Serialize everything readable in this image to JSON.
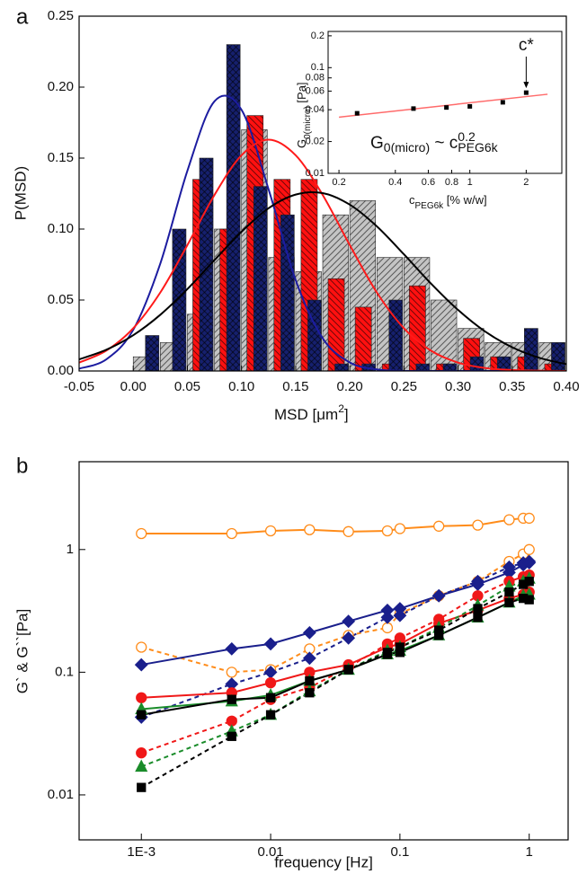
{
  "chart_data": [
    {
      "type": "histogram",
      "panel_label": "a",
      "xlabel_parts": [
        "MSD [μm",
        "2",
        "]"
      ],
      "ylabel": "P(MSD)",
      "bins": [
        0,
        0.025,
        0.05,
        0.075,
        0.1,
        0.125,
        0.15,
        0.175,
        0.2,
        0.225,
        0.25,
        0.275,
        0.3,
        0.325,
        0.35,
        0.375,
        0.4
      ],
      "xlim": [
        -0.05,
        0.4
      ],
      "ylim": [
        0,
        0.25
      ],
      "xticks": [
        -0.05,
        {
          "value": 0,
          "label": "0.00"
        },
        0.05,
        {
          "value": 0.1,
          "label": "0.10"
        },
        0.15,
        {
          "value": 0.2,
          "label": "0.20"
        },
        0.25,
        {
          "value": 0.3,
          "label": "0.30"
        },
        0.35,
        {
          "value": 0.4,
          "label": "0.40"
        }
      ],
      "yticks": [
        {
          "value": 0,
          "label": "0.00"
        },
        0.05,
        {
          "value": 0.1,
          "label": "0.10"
        },
        0.15,
        {
          "value": 0.2,
          "label": "0.20"
        },
        0.25
      ],
      "series": [
        {
          "color": "#c4c4c4",
          "hatch": "diagonal",
          "values": [
            0.01,
            0.02,
            0.04,
            0.1,
            0.17,
            0.08,
            0.07,
            0.11,
            0.12,
            0.08,
            0.08,
            0.05,
            0.03,
            0.02,
            0.02,
            0.02
          ]
        },
        {
          "color": "#ff1010",
          "hatch": "back-diagonal",
          "values": [
            0,
            0,
            0.135,
            0.1,
            0.18,
            0.135,
            0.135,
            0.065,
            0.045,
            0.005,
            0.06,
            0.005,
            0.023,
            0.01,
            0.01,
            0.005
          ]
        },
        {
          "color": "#16206e",
          "hatch": "cross",
          "values": [
            0.025,
            0.1,
            0.15,
            0.23,
            0.13,
            0.11,
            0.05,
            0.005,
            0.005,
            0.05,
            0.005,
            0.005,
            0.01,
            0.01,
            0.03,
            0.02
          ]
        }
      ],
      "fit_x": [
        -0.05,
        -0.025,
        0,
        0.025,
        0.05,
        0.075,
        0.1,
        0.125,
        0.15,
        0.175,
        0.2,
        0.225,
        0.25,
        0.275,
        0.3,
        0.325,
        0.35,
        0.375,
        0.4
      ],
      "fits": [
        {
          "color": "#1c1ca0",
          "values": [
            0.0016,
            0.0081,
            0.029,
            0.0757,
            0.141,
            0.19,
            0.184,
            0.128,
            0.064,
            0.023,
            0.006,
            0.0011,
            0.0001,
            0,
            0,
            0,
            0,
            0,
            0
          ]
        },
        {
          "color": "#ff1a1a",
          "values": [
            0.0059,
            0.0143,
            0.0301,
            0.0553,
            0.0887,
            0.124,
            0.152,
            0.163,
            0.152,
            0.124,
            0.0887,
            0.0553,
            0.0301,
            0.0143,
            0.0059,
            0.0021,
            0.0007,
            0.0002,
            0
          ]
        },
        {
          "color": "#000000",
          "values": [
            0.0082,
            0.0149,
            0.0252,
            0.0396,
            0.0577,
            0.0781,
            0.0981,
            0.1147,
            0.1243,
            0.1253,
            0.1172,
            0.1019,
            0.0822,
            0.0616,
            0.043,
            0.0278,
            0.0167,
            0.0093,
            0.0048
          ]
        }
      ]
    },
    {
      "type": "scatter",
      "log_x": true,
      "log_y": true,
      "xlabel_parts": [
        "c",
        "PEG6k",
        " [% w/w]"
      ],
      "ylabel_parts": [
        "G",
        "0(micro)",
        " [Pa]"
      ],
      "annotation_parts": [
        "G",
        "0(micro)",
        " ~ c",
        "0.2",
        "PEG6k"
      ],
      "point_label": "c*",
      "xlim": [
        0.175,
        3.1
      ],
      "ylim": [
        0.01,
        0.22
      ],
      "xticks": [
        0.2,
        0.4,
        0.6,
        0.8,
        1,
        2
      ],
      "yticks": [
        0.01,
        0.02,
        0.04,
        0.06,
        0.08,
        0.1,
        0.2
      ],
      "x": [
        0.25,
        0.5,
        0.75,
        1.0,
        1.5,
        2.0
      ],
      "values": [
        0.037,
        0.041,
        0.042,
        0.043,
        0.047,
        0.058
      ],
      "color": "#000000",
      "fit": {
        "x": [
          0.2,
          2.6
        ],
        "values": [
          0.034,
          0.056
        ],
        "color": "#ff6a6a"
      }
    },
    {
      "type": "line",
      "panel_label": "b",
      "log_x": true,
      "log_y": true,
      "xlabel": "frequency [Hz]",
      "ylabel": "G` & G``[Pa]",
      "xlim": [
        0.00033,
        2
      ],
      "ylim": [
        0.0043,
        5.2
      ],
      "xticks": [
        {
          "value": 0.001,
          "label": "1E-3"
        },
        0.01,
        0.1,
        1
      ],
      "yticks": [
        0.01,
        0.1,
        1
      ],
      "x": [
        0.001,
        0.005,
        0.01,
        0.02,
        0.04,
        0.08,
        0.1,
        0.2,
        0.4,
        0.7,
        0.9,
        1
      ],
      "series": [
        {
          "color": "#ff8c1a",
          "marker": "circle",
          "filled": false,
          "dashed": false,
          "values": [
            1.35,
            1.35,
            1.42,
            1.45,
            1.4,
            1.42,
            1.48,
            1.55,
            1.58,
            1.75,
            1.8,
            1.8
          ]
        },
        {
          "color": "#ff8c1a",
          "marker": "circle",
          "filled": false,
          "dashed": true,
          "values": [
            0.16,
            0.1,
            0.105,
            0.155,
            0.2,
            0.23,
            0.3,
            0.42,
            0.55,
            0.8,
            0.92,
            1.0
          ]
        },
        {
          "color": "#1a1f8c",
          "marker": "diamond",
          "filled": true,
          "dashed": false,
          "values": [
            0.115,
            0.155,
            0.17,
            0.21,
            0.26,
            0.32,
            0.33,
            0.42,
            0.52,
            0.65,
            0.75,
            0.8
          ]
        },
        {
          "color": "#1a1f8c",
          "marker": "diamond",
          "filled": true,
          "dashed": true,
          "values": [
            0.043,
            0.08,
            0.1,
            0.13,
            0.19,
            0.28,
            0.29,
            0.42,
            0.55,
            0.72,
            0.78,
            0.78
          ]
        },
        {
          "color": "#f01818",
          "marker": "circle",
          "filled": true,
          "dashed": false,
          "values": [
            0.062,
            0.068,
            0.082,
            0.1,
            0.115,
            0.16,
            0.17,
            0.25,
            0.32,
            0.4,
            0.43,
            0.45
          ]
        },
        {
          "color": "#f01818",
          "marker": "circle",
          "filled": true,
          "dashed": true,
          "values": [
            0.022,
            0.04,
            0.06,
            0.075,
            0.11,
            0.17,
            0.19,
            0.27,
            0.42,
            0.55,
            0.6,
            0.62
          ]
        },
        {
          "color": "#1a8c2a",
          "marker": "triangle",
          "filled": true,
          "dashed": false,
          "values": [
            0.05,
            0.058,
            0.065,
            0.085,
            0.105,
            0.14,
            0.15,
            0.2,
            0.28,
            0.37,
            0.42,
            0.43
          ]
        },
        {
          "color": "#1a8c2a",
          "marker": "triangle",
          "filled": true,
          "dashed": true,
          "values": [
            0.017,
            0.033,
            0.045,
            0.07,
            0.105,
            0.15,
            0.16,
            0.23,
            0.35,
            0.5,
            0.55,
            0.58
          ]
        },
        {
          "color": "#000000",
          "marker": "square",
          "filled": true,
          "dashed": false,
          "values": [
            0.045,
            0.06,
            0.062,
            0.085,
            0.105,
            0.14,
            0.145,
            0.2,
            0.28,
            0.37,
            0.4,
            0.39
          ]
        },
        {
          "color": "#000000",
          "marker": "square",
          "filled": true,
          "dashed": true,
          "values": [
            0.0115,
            0.03,
            0.045,
            0.068,
            0.105,
            0.145,
            0.16,
            0.22,
            0.33,
            0.45,
            0.52,
            0.55
          ]
        }
      ]
    }
  ]
}
